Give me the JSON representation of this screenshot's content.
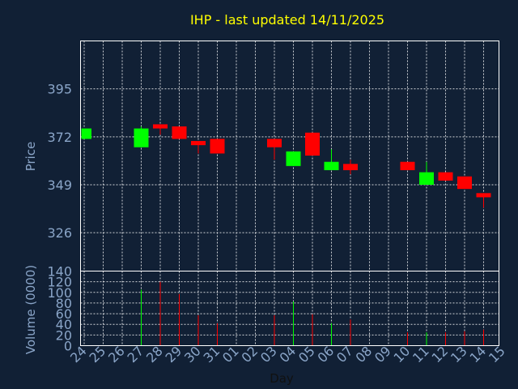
{
  "colors": {
    "background": "#112035",
    "frame": "#ffffff",
    "grid": "#ffffff",
    "title": "#ffff00",
    "tick_labels": "#8aa5c8",
    "day_label": "#111111",
    "up": "#00ff00",
    "down": "#ff0000"
  },
  "chart_data": {
    "type": "candlestick",
    "title": "IHP - last updated 14/11/2025",
    "xlabel": "Day",
    "price_panel": {
      "ylabel": "Price",
      "yticks": [
        326,
        349,
        372,
        395
      ],
      "ylim": [
        307.6,
        418.0
      ],
      "grid": true
    },
    "volume_panel": {
      "ylabel": "Volume (0000)",
      "yticks": [
        0,
        20,
        40,
        60,
        80,
        100,
        120,
        140
      ],
      "ylim": [
        0,
        140
      ],
      "grid": true
    },
    "xticks": [
      "24",
      "25",
      "26",
      "27",
      "28",
      "29",
      "30",
      "31",
      "01",
      "02",
      "03",
      "04",
      "05",
      "06",
      "07",
      "08",
      "09",
      "10",
      "11",
      "12",
      "13",
      "14",
      "15"
    ],
    "candles": [
      {
        "day": "24",
        "open": 371,
        "high": 376,
        "low": 371,
        "close": 376,
        "volume": 0
      },
      {
        "day": "27",
        "open": 367,
        "high": 377,
        "low": 367,
        "close": 376,
        "volume": 105
      },
      {
        "day": "28",
        "open": 378,
        "high": 378,
        "low": 373,
        "close": 376,
        "volume": 120
      },
      {
        "day": "29",
        "open": 377,
        "high": 377,
        "low": 371,
        "close": 371,
        "volume": 97
      },
      {
        "day": "30",
        "open": 370,
        "high": 370,
        "low": 364,
        "close": 368,
        "volume": 57
      },
      {
        "day": "31",
        "open": 371,
        "high": 371,
        "low": 364,
        "close": 364,
        "volume": 42
      },
      {
        "day": "03",
        "open": 371,
        "high": 371,
        "low": 361,
        "close": 367,
        "volume": 57
      },
      {
        "day": "04",
        "open": 358,
        "high": 365,
        "low": 358,
        "close": 365,
        "volume": 83
      },
      {
        "day": "05",
        "open": 374,
        "high": 374,
        "low": 363,
        "close": 363,
        "volume": 59
      },
      {
        "day": "06",
        "open": 356,
        "high": 366,
        "low": 356,
        "close": 360,
        "volume": 42
      },
      {
        "day": "07",
        "open": 359,
        "high": 361,
        "low": 354,
        "close": 356,
        "volume": 49
      },
      {
        "day": "10",
        "open": 360,
        "high": 360,
        "low": 356,
        "close": 356,
        "volume": 25
      },
      {
        "day": "11",
        "open": 349,
        "high": 360,
        "low": 349,
        "close": 355,
        "volume": 25
      },
      {
        "day": "12",
        "open": 355,
        "high": 355,
        "low": 351,
        "close": 351,
        "volume": 25
      },
      {
        "day": "13",
        "open": 353,
        "high": 353,
        "low": 347,
        "close": 347,
        "volume": 27
      },
      {
        "day": "14",
        "open": 345,
        "high": 345,
        "low": 338,
        "close": 343,
        "volume": 30
      }
    ]
  }
}
